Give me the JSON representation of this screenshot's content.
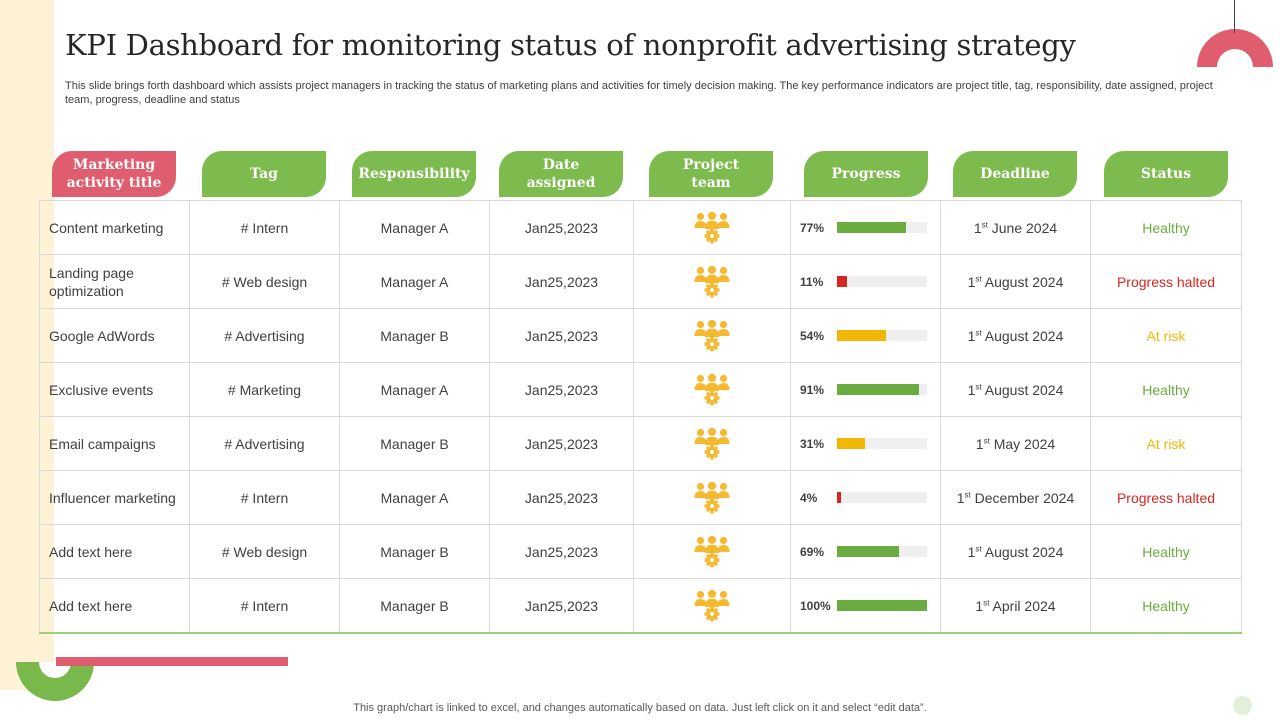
{
  "title": "KPI Dashboard for monitoring status of nonprofit advertising strategy",
  "subtitle": "This slide brings forth dashboard which assists project managers in tracking the status of marketing plans and activities for timely decision making. The key performance indicators are project title, tag, responsibility, date assigned, project team, progress, deadline and status",
  "headers": {
    "title": "Marketing activity title",
    "tag": "Tag",
    "responsibility": "Responsibility",
    "date": "Date assigned",
    "team": "Project team",
    "progress": "Progress",
    "deadline": "Deadline",
    "status": "Status"
  },
  "colors": {
    "healthy": "#6aac3f",
    "halted": "#d9251f",
    "at_risk": "#f2b705",
    "header_green": "#7dbb4f",
    "header_pink": "#e05d6f",
    "team_icon": "#f5b82e"
  },
  "team_icon": "team-gear-icon",
  "rows": [
    {
      "title": "Content marketing",
      "tag": "# Intern",
      "responsibility": "Manager  A",
      "date": "Jan25,2023",
      "progress_label": "77%",
      "progress": 77,
      "deadline_day": "1",
      "deadline_sup": "st",
      "deadline_rest": " June 2024",
      "status": "Healthy",
      "status_type": "healthy"
    },
    {
      "title": "Landing page optimization",
      "tag": "# Web design",
      "responsibility": "Manager  A",
      "date": "Jan25,2023",
      "progress_label": "11%",
      "progress": 11,
      "deadline_day": "1",
      "deadline_sup": "st",
      "deadline_rest": " August 2024",
      "status": "Progress halted",
      "status_type": "halted"
    },
    {
      "title": "Google AdWords",
      "tag": "# Advertising",
      "responsibility": "Manager  B",
      "date": "Jan25,2023",
      "progress_label": "54%",
      "progress": 54,
      "deadline_day": "1",
      "deadline_sup": "st",
      "deadline_rest": " August 2024",
      "status": "At risk",
      "status_type": "at_risk"
    },
    {
      "title": "Exclusive events",
      "tag": "# Marketing",
      "responsibility": "Manager  A",
      "date": "Jan25,2023",
      "progress_label": "91%",
      "progress": 91,
      "deadline_day": "1",
      "deadline_sup": "st",
      "deadline_rest": " August 2024",
      "status": "Healthy",
      "status_type": "healthy"
    },
    {
      "title": "Email campaigns",
      "tag": "# Advertising",
      "responsibility": "Manager  B",
      "date": "Jan25,2023",
      "progress_label": "31%",
      "progress": 31,
      "deadline_day": "1",
      "deadline_sup": "st",
      "deadline_rest": " May 2024",
      "status": "At risk",
      "status_type": "at_risk"
    },
    {
      "title": "Influencer marketing",
      "tag": "# Intern",
      "responsibility": "Manager  A",
      "date": "Jan25,2023",
      "progress_label": "4%",
      "progress": 4,
      "deadline_day": "1",
      "deadline_sup": "st",
      "deadline_rest": " December 2024",
      "status": "Progress halted",
      "status_type": "halted"
    },
    {
      "title": "Add text here",
      "tag": "# Web design",
      "responsibility": "Manager  B",
      "date": "Jan25,2023",
      "progress_label": "69%",
      "progress": 69,
      "deadline_day": "1",
      "deadline_sup": "st",
      "deadline_rest": " August 2024",
      "status": "Healthy",
      "status_type": "healthy"
    },
    {
      "title": "Add text here",
      "tag": "# Intern",
      "responsibility": "Manager  B",
      "date": "Jan25,2023",
      "progress_label": "100%",
      "progress": 100,
      "deadline_day": "1",
      "deadline_sup": "st",
      "deadline_rest": " April 2024",
      "status": "Healthy",
      "status_type": "healthy"
    }
  ],
  "footer": "This graph/chart is linked to excel,  and changes automatically based on data. Just left click on it and select “edit data”."
}
